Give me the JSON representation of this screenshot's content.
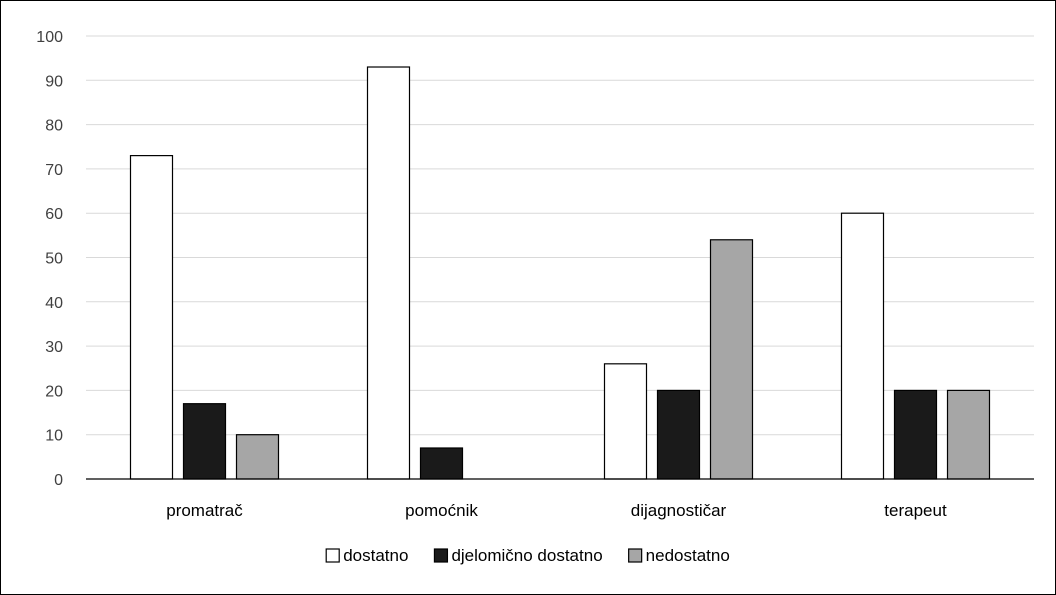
{
  "chart_data": {
    "type": "bar",
    "categories": [
      "promatrač",
      "pomoćnik",
      "dijagnostičar",
      "terapeut"
    ],
    "series": [
      {
        "name": "dostatno",
        "values": [
          73,
          93,
          26,
          60
        ],
        "color": "#ffffff"
      },
      {
        "name": "djelomično dostatno",
        "values": [
          17,
          7,
          20,
          20
        ],
        "color": "#1a1a1a"
      },
      {
        "name": "nedostatno",
        "values": [
          10,
          0,
          54,
          20
        ],
        "color": "#a6a6a6"
      }
    ],
    "title": "",
    "xlabel": "",
    "ylabel": "",
    "ylim": [
      0,
      100
    ],
    "yticks": [
      "0",
      "10",
      "20",
      "30",
      "40",
      "50",
      "60",
      "70",
      "80",
      "90",
      "100"
    ],
    "grid": true,
    "legend_position": "bottom",
    "gridline_color": "#d9d9d9",
    "bar_outline_color": "#000000"
  }
}
